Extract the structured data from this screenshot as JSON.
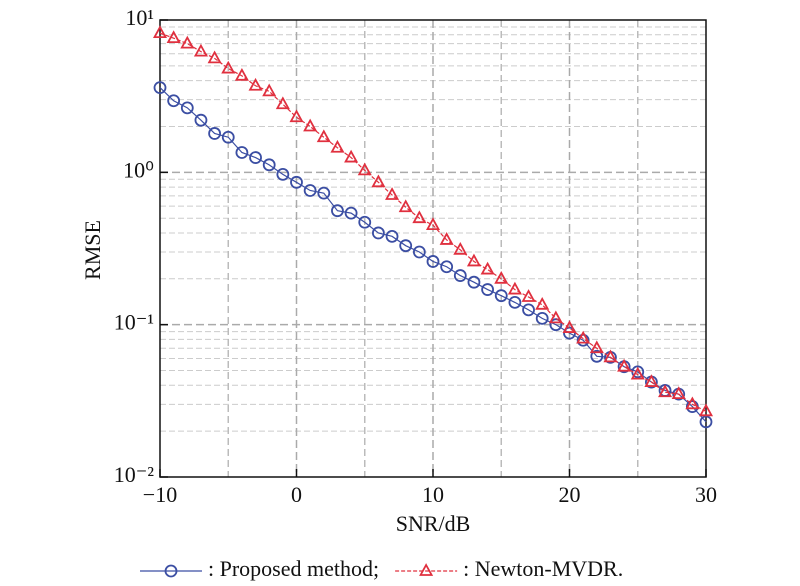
{
  "chart_data": {
    "type": "line",
    "xlabel": "SNR/dB",
    "ylabel": "RMSE",
    "x": [
      -10,
      -9,
      -8,
      -7,
      -6,
      -5,
      -4,
      -3,
      -2,
      -1,
      0,
      1,
      2,
      3,
      4,
      5,
      6,
      7,
      8,
      9,
      10,
      11,
      12,
      13,
      14,
      15,
      16,
      17,
      18,
      19,
      20,
      21,
      22,
      23,
      24,
      25,
      26,
      27,
      28,
      29,
      30
    ],
    "series": [
      {
        "name": ": Proposed method;",
        "color": "#3b4ea3",
        "marker": "circle",
        "linestyle": "solid",
        "values": [
          3.6,
          2.95,
          2.65,
          2.2,
          1.8,
          1.7,
          1.35,
          1.25,
          1.12,
          0.97,
          0.86,
          0.76,
          0.73,
          0.56,
          0.54,
          0.47,
          0.4,
          0.38,
          0.33,
          0.3,
          0.26,
          0.24,
          0.21,
          0.19,
          0.17,
          0.155,
          0.14,
          0.125,
          0.11,
          0.1,
          0.088,
          0.079,
          0.062,
          0.061,
          0.053,
          0.049,
          0.042,
          0.037,
          0.035,
          0.029,
          0.023
        ]
      },
      {
        "name": ": Newton-MVDR.",
        "color": "#e0303f",
        "marker": "triangle",
        "linestyle": "dashed",
        "values": [
          8.2,
          7.6,
          7.0,
          6.2,
          5.6,
          4.8,
          4.3,
          3.7,
          3.4,
          2.8,
          2.3,
          2.0,
          1.7,
          1.45,
          1.25,
          1.03,
          0.86,
          0.71,
          0.59,
          0.5,
          0.45,
          0.36,
          0.31,
          0.26,
          0.23,
          0.2,
          0.17,
          0.152,
          0.135,
          0.11,
          0.095,
          0.081,
          0.07,
          0.061,
          0.053,
          0.047,
          0.042,
          0.036,
          0.035,
          0.03,
          0.027
        ]
      }
    ],
    "xlim": [
      -10,
      30
    ],
    "xticks": [
      {
        "value": -10,
        "label": "−10"
      },
      0,
      10,
      20,
      30
    ],
    "ylim": [
      0.01,
      10
    ],
    "yticks": [
      {
        "value": 0.01,
        "label": "10⁻²"
      },
      {
        "value": 0.1,
        "label": "10⁻¹"
      },
      {
        "value": 1,
        "label": "10⁰"
      },
      {
        "value": 10,
        "label": "10¹"
      }
    ],
    "yscale": "log",
    "grid": true,
    "legend": "bottom"
  }
}
